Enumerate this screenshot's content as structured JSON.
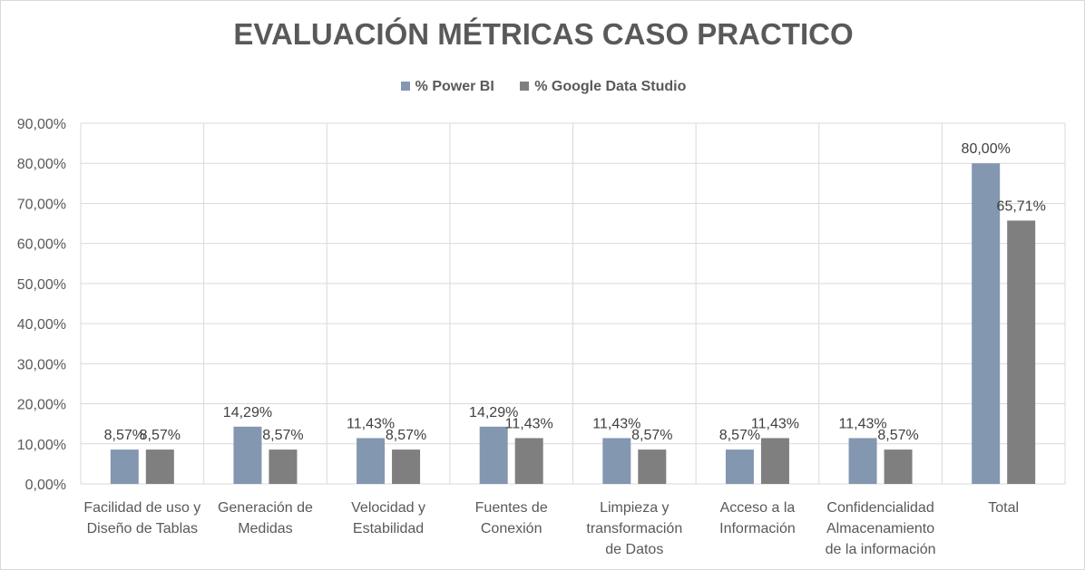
{
  "colors": {
    "power_bi": "#8497b0",
    "google_data_studio": "#7f7f7f",
    "grid": "#d9d9d9",
    "text": "#595959"
  },
  "chart_data": {
    "type": "bar",
    "title": "EVALUACIÓN MÉTRICAS CASO PRACTICO",
    "xlabel": "",
    "ylabel": "",
    "ylim": [
      0,
      90
    ],
    "y_ticks": [
      0,
      10,
      20,
      30,
      40,
      50,
      60,
      70,
      80,
      90
    ],
    "y_tick_labels": [
      "0,00%",
      "10,00%",
      "20,00%",
      "30,00%",
      "40,00%",
      "50,00%",
      "60,00%",
      "70,00%",
      "80,00%",
      "90,00%"
    ],
    "grid": true,
    "legend_position": "top",
    "categories": [
      [
        "Facilidad de uso y",
        "Diseño de Tablas"
      ],
      [
        "Generación de",
        "Medidas"
      ],
      [
        "Velocidad y",
        "Estabilidad"
      ],
      [
        "Fuentes de",
        "Conexión"
      ],
      [
        "Limpieza y",
        "transformación",
        "de Datos"
      ],
      [
        "Acceso a la",
        "Información"
      ],
      [
        "Confidencialidad",
        "Almacenamiento",
        "de la información"
      ],
      [
        "Total"
      ]
    ],
    "series": [
      {
        "name": "% Power BI",
        "values": [
          8.57,
          14.29,
          11.43,
          14.29,
          11.43,
          8.57,
          11.43,
          80.0
        ],
        "labels": [
          "8,57%",
          "14,29%",
          "11,43%",
          "14,29%",
          "11,43%",
          "8,57%",
          "11,43%",
          "80,00%"
        ]
      },
      {
        "name": "% Google Data Studio",
        "values": [
          8.57,
          8.57,
          8.57,
          11.43,
          8.57,
          11.43,
          8.57,
          65.71
        ],
        "labels": [
          "8,57%",
          "8,57%",
          "8,57%",
          "11,43%",
          "8,57%",
          "11,43%",
          "8,57%",
          "65,71%"
        ]
      }
    ]
  }
}
